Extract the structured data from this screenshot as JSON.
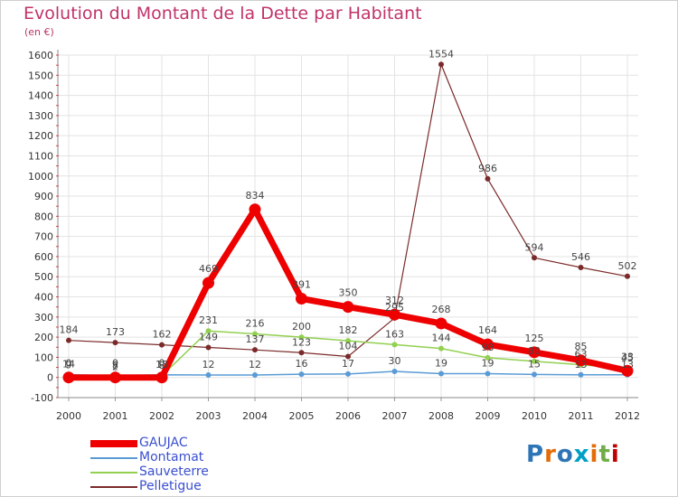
{
  "title": "Evolution du Montant de la Dette par Habitant",
  "unit": "(en €)",
  "logo_text": "Proxiti",
  "chart_data": {
    "type": "line",
    "title": "Evolution du Montant de la Dette par Habitant",
    "ylabel": "(en €)",
    "xlabel": "",
    "x": [
      "2000",
      "2001",
      "2002",
      "2003",
      "2004",
      "2005",
      "2006",
      "2007",
      "2008",
      "2009",
      "2010",
      "2011",
      "2012"
    ],
    "ylim": [
      -100,
      1600
    ],
    "yticks": [
      -100,
      0,
      100,
      200,
      300,
      400,
      500,
      600,
      700,
      800,
      900,
      1000,
      1100,
      1200,
      1300,
      1400,
      1500,
      1600
    ],
    "grid": true,
    "legend": "bottom-left",
    "series": [
      {
        "name": "GAUJAC",
        "color": "#ee0000",
        "values": [
          0,
          0,
          0,
          469,
          834,
          391,
          350,
          312,
          268,
          164,
          125,
          85,
          33
        ]
      },
      {
        "name": "Montamat",
        "color": "#5b9bd5",
        "values": [
          14,
          8,
          13,
          12,
          12,
          16,
          17,
          30,
          19,
          19,
          15,
          13,
          13
        ]
      },
      {
        "name": "Sauveterre",
        "color": "#92d050",
        "values": [
          9,
          2,
          8,
          231,
          216,
          200,
          182,
          163,
          144,
          98,
          80,
          63,
          45
        ]
      },
      {
        "name": "Pelletigue",
        "color": "#7b2a2a",
        "values": [
          184,
          173,
          162,
          149,
          137,
          123,
          104,
          295,
          1554,
          986,
          594,
          546,
          502
        ]
      }
    ],
    "data_labels": [
      {
        "series": "GAUJAC",
        "labels": [
          "0",
          "0",
          "0",
          "469",
          "834",
          "391",
          "350",
          "312",
          "268",
          "164",
          "125",
          "85",
          "33"
        ]
      },
      {
        "series": "Montamat",
        "labels": [
          "14",
          "8",
          "13",
          "12",
          "12",
          "16",
          "17",
          "30",
          "19",
          "19",
          "15",
          "13",
          "13"
        ]
      },
      {
        "series": "Sauveterre",
        "labels": [
          "9",
          "2",
          "8",
          "231",
          "216",
          "200",
          "182",
          "163",
          "144",
          "98",
          "80",
          "63",
          "45"
        ]
      },
      {
        "series": "Pelletigue",
        "labels": [
          "184",
          "173",
          "162",
          "149",
          "137",
          "123",
          "104",
          "295",
          "1554",
          "986",
          "594",
          "546",
          "502"
        ]
      }
    ]
  }
}
